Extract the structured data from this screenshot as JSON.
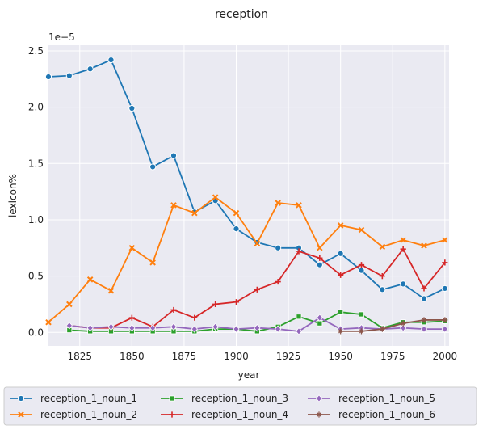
{
  "chart_data": {
    "type": "line",
    "title": "reception",
    "xlabel": "year",
    "ylabel": "lexicon%",
    "y_scale_label": "1e−5",
    "xlim": [
      1810,
      2002
    ],
    "ylim": [
      -0.12,
      2.55
    ],
    "xticks": [
      1825,
      1850,
      1875,
      1900,
      1925,
      1950,
      1975,
      2000
    ],
    "yticks": [
      0.0,
      0.5,
      1.0,
      1.5,
      2.0,
      2.5
    ],
    "ytick_labels": [
      "0.0",
      "0.5",
      "1.0",
      "1.5",
      "2.0",
      "2.5"
    ],
    "grid": true,
    "legend_position": "bottom",
    "series": [
      {
        "name": "reception_1_noun_1",
        "color": "#1f77b4",
        "marker": "circle",
        "x": [
          1810,
          1820,
          1830,
          1840,
          1850,
          1860,
          1870,
          1880,
          1890,
          1900,
          1910,
          1920,
          1930,
          1940,
          1950,
          1960,
          1970,
          1980,
          1990,
          2000
        ],
        "y": [
          2.27,
          2.28,
          2.34,
          2.42,
          1.99,
          1.47,
          1.57,
          1.07,
          1.17,
          0.92,
          0.8,
          0.75,
          0.75,
          0.6,
          0.7,
          0.55,
          0.38,
          0.43,
          0.3,
          0.39
        ]
      },
      {
        "name": "reception_1_noun_2",
        "color": "#ff7f0e",
        "marker": "x",
        "x": [
          1810,
          1820,
          1830,
          1840,
          1850,
          1860,
          1870,
          1880,
          1890,
          1900,
          1910,
          1920,
          1930,
          1940,
          1950,
          1960,
          1970,
          1980,
          1990,
          2000
        ],
        "y": [
          0.09,
          0.25,
          0.47,
          0.37,
          0.75,
          0.62,
          1.13,
          1.06,
          1.2,
          1.06,
          0.79,
          1.15,
          1.13,
          0.75,
          0.95,
          0.91,
          0.76,
          0.82,
          0.77,
          0.82
        ]
      },
      {
        "name": "reception_1_noun_3",
        "color": "#2ca02c",
        "marker": "square",
        "x": [
          1820,
          1830,
          1840,
          1850,
          1860,
          1870,
          1880,
          1890,
          1900,
          1910,
          1920,
          1930,
          1940,
          1950,
          1960,
          1970,
          1980,
          1990,
          2000
        ],
        "y": [
          0.02,
          0.01,
          0.01,
          0.01,
          0.01,
          0.01,
          0.01,
          0.03,
          0.03,
          0.01,
          0.05,
          0.14,
          0.08,
          0.18,
          0.16,
          0.04,
          0.09,
          0.09,
          0.1
        ]
      },
      {
        "name": "reception_1_noun_4",
        "color": "#d62728",
        "marker": "plus",
        "x": [
          1820,
          1830,
          1840,
          1850,
          1860,
          1870,
          1880,
          1890,
          1900,
          1910,
          1920,
          1930,
          1940,
          1950,
          1960,
          1970,
          1980,
          1990,
          2000
        ],
        "y": [
          0.06,
          0.04,
          0.04,
          0.13,
          0.05,
          0.2,
          0.13,
          0.25,
          0.27,
          0.38,
          0.45,
          0.72,
          0.66,
          0.51,
          0.6,
          0.5,
          0.74,
          0.39,
          0.62
        ]
      },
      {
        "name": "reception_1_noun_5",
        "color": "#9467bd",
        "marker": "diamond",
        "x": [
          1820,
          1830,
          1840,
          1850,
          1860,
          1870,
          1880,
          1890,
          1900,
          1910,
          1920,
          1930,
          1940,
          1950,
          1960,
          1970,
          1980,
          1990,
          2000
        ],
        "y": [
          0.06,
          0.04,
          0.05,
          0.04,
          0.04,
          0.05,
          0.03,
          0.05,
          0.03,
          0.04,
          0.03,
          0.01,
          0.13,
          0.03,
          0.04,
          0.03,
          0.04,
          0.03,
          0.03
        ]
      },
      {
        "name": "reception_1_noun_6",
        "color": "#8c564b",
        "marker": "star",
        "x": [
          1950,
          1960,
          1970,
          1980,
          1990,
          2000
        ],
        "y": [
          0.01,
          0.01,
          0.03,
          0.08,
          0.11,
          0.11
        ]
      }
    ]
  }
}
